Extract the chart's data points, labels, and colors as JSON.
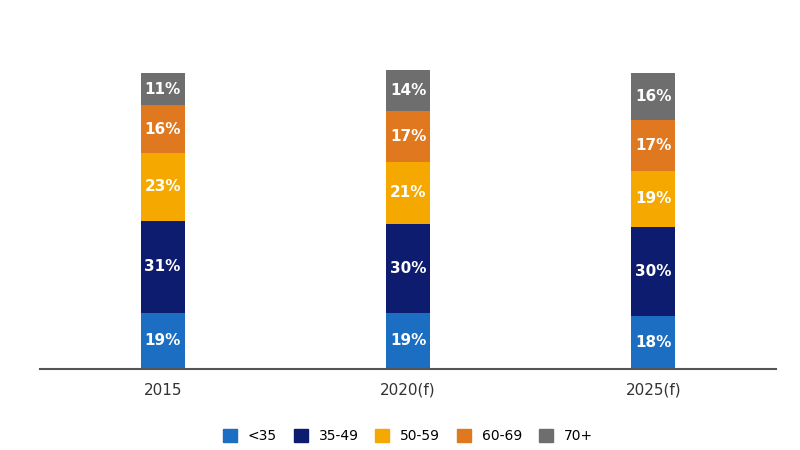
{
  "categories": [
    "2015",
    "2020(f)",
    "2025(f)"
  ],
  "segments": [
    {
      "label": "<35",
      "values": [
        19,
        19,
        18
      ],
      "color": "#1B6EC2"
    },
    {
      "label": "35-49",
      "values": [
        31,
        30,
        30
      ],
      "color": "#0D1C6E"
    },
    {
      "label": "50-59",
      "values": [
        23,
        21,
        19
      ],
      "color": "#F5A800"
    },
    {
      "label": "60-69",
      "values": [
        16,
        17,
        17
      ],
      "color": "#E07820"
    },
    {
      "label": "70+",
      "values": [
        11,
        14,
        16
      ],
      "color": "#6E6E6E"
    }
  ],
  "bar_width": 0.18,
  "background_color": "#FFFFFF",
  "text_color": "#FFFFFF",
  "label_fontsize": 11,
  "tick_fontsize": 11,
  "legend_fontsize": 10,
  "ylim": [
    0,
    120
  ],
  "spine_color": "#555555"
}
